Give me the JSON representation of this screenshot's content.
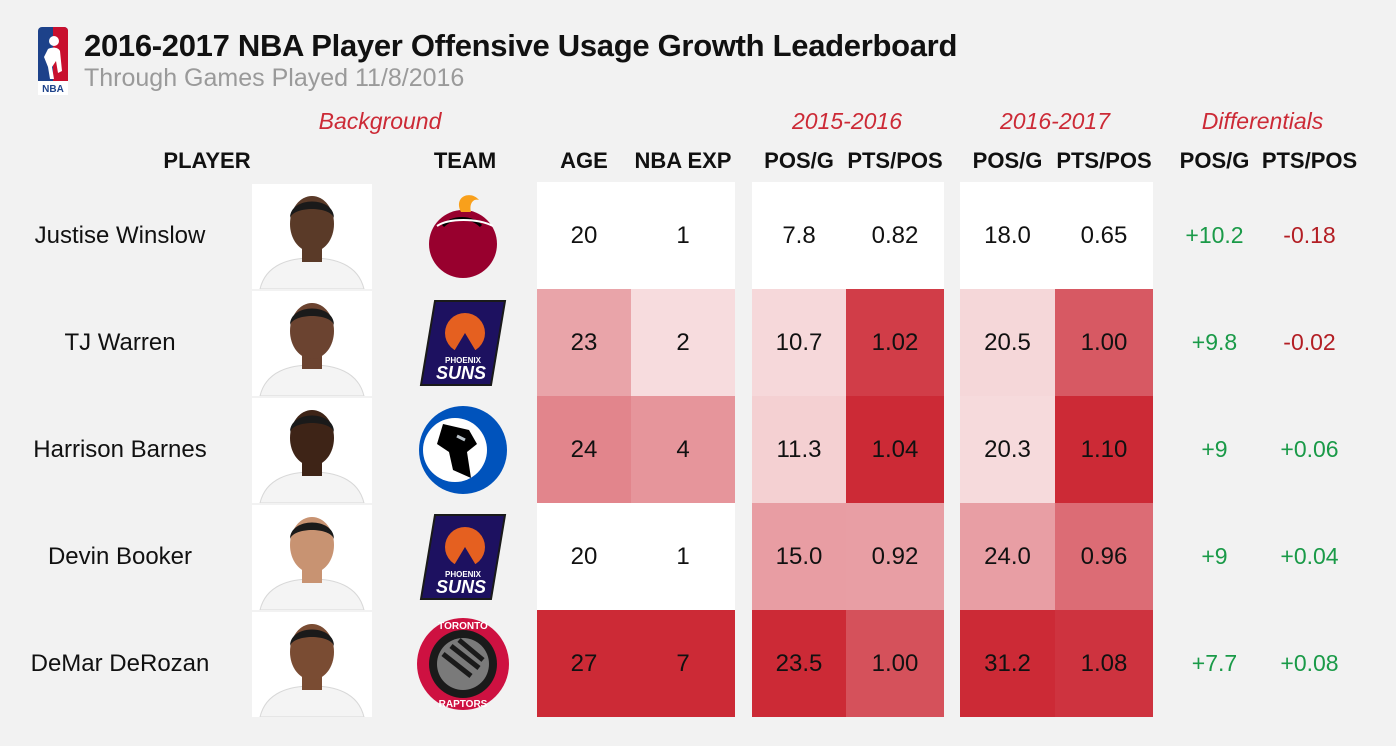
{
  "header": {
    "title": "2016-2017 NBA Player Offensive Usage Growth Leaderboard",
    "subtitle": "Through Games Played 11/8/2016",
    "logo_text": "NBA"
  },
  "groups": {
    "background": "Background",
    "season1": "2015-2016",
    "season2": "2016-2017",
    "differentials": "Differentials"
  },
  "columns": {
    "player": "PLAYER",
    "team": "TEAM",
    "age": "AGE",
    "exp": "NBA EXP",
    "pos_g_1": "POS/G",
    "pts_pos_1": "PTS/POS",
    "pos_g_2": "POS/G",
    "pts_pos_2": "PTS/POS",
    "diff_pos_g": "POS/G",
    "diff_pts_pos": "PTS/POS"
  },
  "chart_data": {
    "type": "table",
    "title": "2016-2017 NBA Player Offensive Usage Growth Leaderboard",
    "rows": [
      {
        "player": "Justise Winslow",
        "team": "Miami Heat",
        "age": "20",
        "exp": "1",
        "pos_g_1516": "7.8",
        "pts_pos_1516": "0.82",
        "pos_g_1617": "18.0",
        "pts_pos_1617": "0.65",
        "diff_pos_g": "+10.2",
        "diff_pts_pos": "-0.18"
      },
      {
        "player": "TJ Warren",
        "team": "Phoenix Suns",
        "age": "23",
        "exp": "2",
        "pos_g_1516": "10.7",
        "pts_pos_1516": "1.02",
        "pos_g_1617": "20.5",
        "pts_pos_1617": "1.00",
        "diff_pos_g": "+9.8",
        "diff_pts_pos": "-0.02"
      },
      {
        "player": "Harrison Barnes",
        "team": "Dallas Mavericks",
        "age": "24",
        "exp": "4",
        "pos_g_1516": "11.3",
        "pts_pos_1516": "1.04",
        "pos_g_1617": "20.3",
        "pts_pos_1617": "1.10",
        "diff_pos_g": "+9",
        "diff_pts_pos": "+0.06"
      },
      {
        "player": "Devin Booker",
        "team": "Phoenix Suns",
        "age": "20",
        "exp": "1",
        "pos_g_1516": "15.0",
        "pts_pos_1516": "0.92",
        "pos_g_1617": "24.0",
        "pts_pos_1617": "0.96",
        "diff_pos_g": "+9",
        "diff_pts_pos": "+0.04"
      },
      {
        "player": "DeMar DeRozan",
        "team": "Toronto Raptors",
        "age": "27",
        "exp": "7",
        "pos_g_1516": "23.5",
        "pts_pos_1516": "1.00",
        "pos_g_1617": "31.2",
        "pts_pos_1617": "1.08",
        "diff_pos_g": "+7.7",
        "diff_pts_pos": "+0.08"
      }
    ]
  },
  "team_logo_text": {
    "suns": "SUNS",
    "phoenix": "PHOENIX",
    "toronto": "TORONTO",
    "raptors": "RAPTORS"
  },
  "colors": {
    "background": "#f2f2f2",
    "heat_low": "#ffffff",
    "heat_high": "#cc2a36",
    "positive": "#1a9a48",
    "negative": "#b31e24",
    "group_label": "#cc2a36"
  }
}
